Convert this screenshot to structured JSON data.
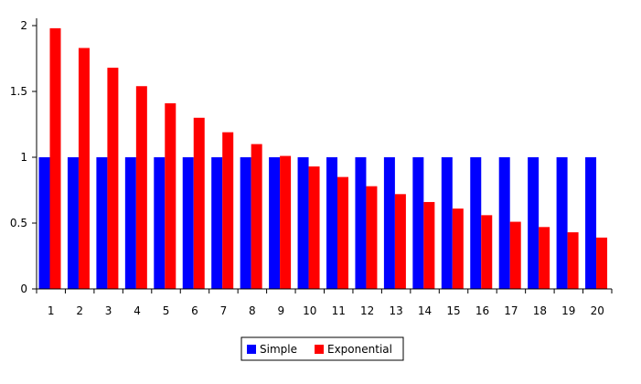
{
  "chart_data": {
    "type": "bar",
    "title": "",
    "xlabel": "",
    "ylabel": "",
    "ylim": [
      0,
      2
    ],
    "yticks": [
      0,
      0.5,
      1,
      1.5,
      2
    ],
    "ytick_labels": [
      "0",
      "0.5",
      "1",
      "1.5",
      "2"
    ],
    "grid": false,
    "legend_position": "bottom-center",
    "categories": [
      "1",
      "2",
      "3",
      "4",
      "5",
      "6",
      "7",
      "8",
      "9",
      "10",
      "11",
      "12",
      "13",
      "14",
      "15",
      "16",
      "17",
      "18",
      "19",
      "20"
    ],
    "series": [
      {
        "name": "Simple",
        "color": "#0000ff",
        "values": [
          1,
          1,
          1,
          1,
          1,
          1,
          1,
          1,
          1,
          1,
          1,
          1,
          1,
          1,
          1,
          1,
          1,
          1,
          1,
          1
        ]
      },
      {
        "name": "Exponential",
        "color": "#ff0000",
        "values": [
          1.98,
          1.83,
          1.68,
          1.54,
          1.41,
          1.3,
          1.19,
          1.1,
          1.01,
          0.93,
          0.85,
          0.78,
          0.72,
          0.66,
          0.61,
          0.56,
          0.51,
          0.47,
          0.43,
          0.39
        ]
      }
    ]
  }
}
